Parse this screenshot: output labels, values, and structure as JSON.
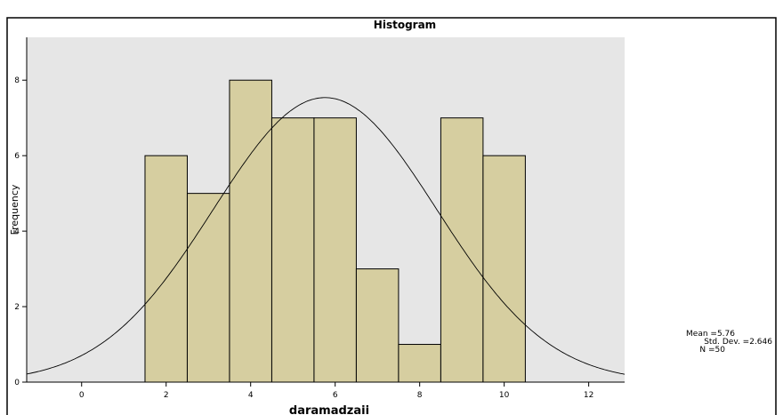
{
  "chart_data": {
    "type": "histogram",
    "title": "Histogram",
    "x_label": "daramadzaii",
    "y_label": "Frequency",
    "bins": [
      1.5,
      2.5,
      3.5,
      4.5,
      5.5,
      6.5,
      7.5,
      8.5,
      9.5,
      10.5
    ],
    "values": [
      6,
      5,
      8,
      7,
      7,
      3,
      1,
      7,
      6
    ],
    "color": "#d6cea0",
    "xlim": [
      -1.3,
      12.85
    ],
    "xticks": [
      0,
      2,
      4,
      6,
      8,
      10,
      12
    ],
    "ylim": [
      0,
      9.3
    ],
    "yticks": [
      0,
      2,
      4,
      6,
      8
    ],
    "stats": {
      "mean": {
        "value": 5.76,
        "label": "Mean =5.76"
      },
      "sd": {
        "value": 2.646,
        "label": "Std. Dev. =2.646"
      },
      "n": {
        "value": 50,
        "label": "N =50"
      }
    }
  }
}
